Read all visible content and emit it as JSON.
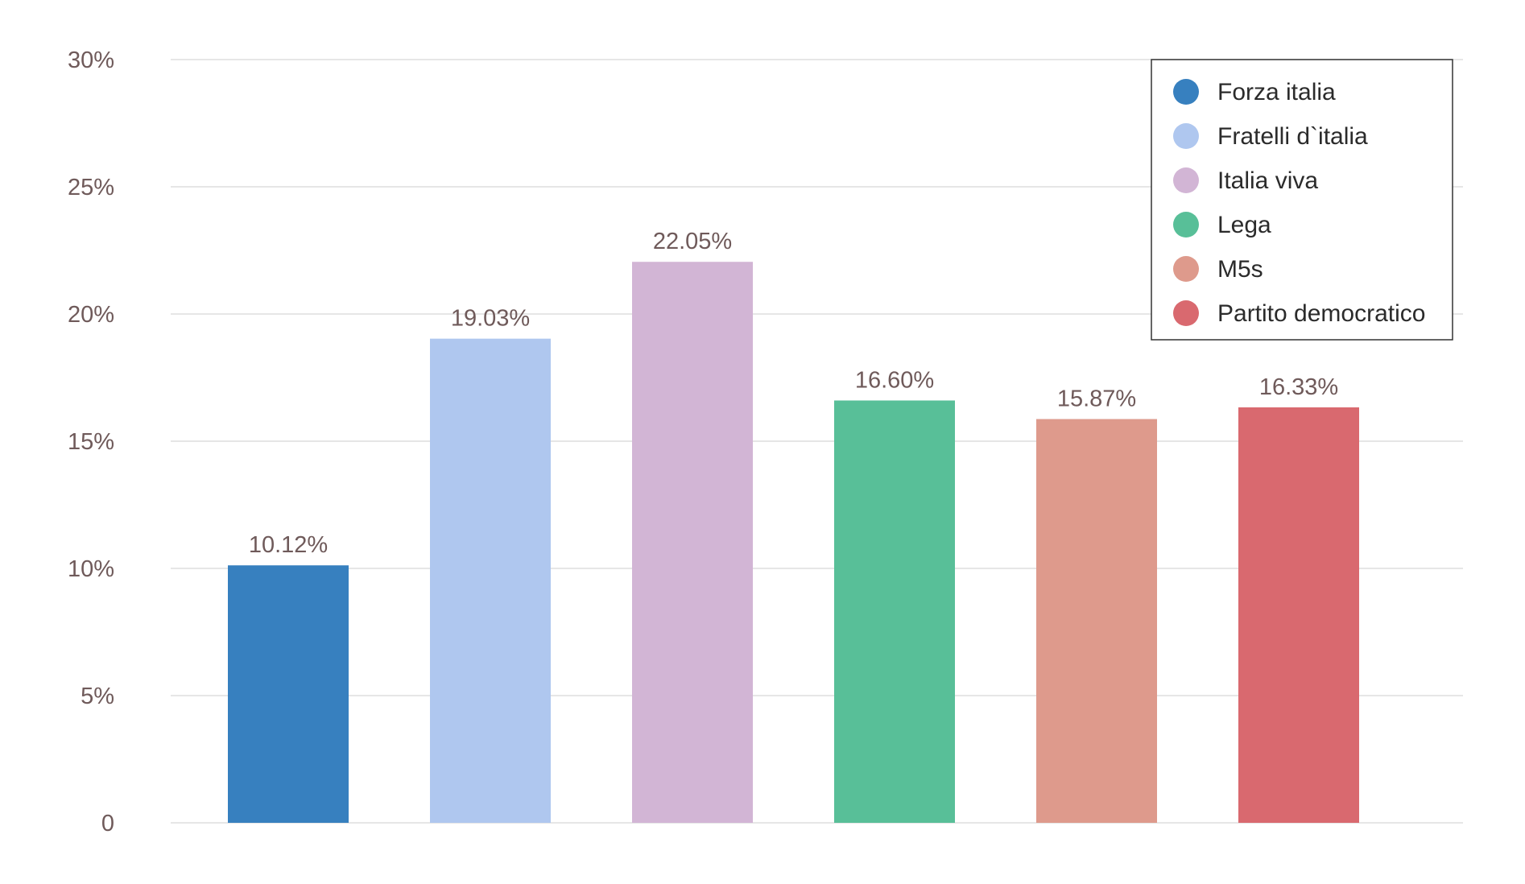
{
  "chart_data": {
    "type": "bar",
    "categories": [
      "Forza italia",
      "Fratelli d`italia",
      "Italia viva",
      "Lega",
      "M5s",
      "Partito democratico"
    ],
    "values": [
      10.12,
      19.03,
      22.05,
      16.6,
      15.87,
      16.33
    ],
    "value_labels": [
      "10.12%",
      "19.03%",
      "22.05%",
      "16.60%",
      "15.87%",
      "16.33%"
    ],
    "colors": [
      "#3780bf",
      "#afc7ef",
      "#d2b5d5",
      "#58bf98",
      "#de9a8c",
      "#d9696f"
    ],
    "ylim": [
      0,
      30
    ],
    "y_ticks": [
      0,
      5,
      10,
      15,
      20,
      25,
      30
    ],
    "y_tick_labels": [
      "0",
      "5%",
      "10%",
      "15%",
      "20%",
      "25%",
      "30%"
    ],
    "grid": true,
    "legend_position": "top-right",
    "title": "",
    "xlabel": "",
    "ylabel": ""
  }
}
